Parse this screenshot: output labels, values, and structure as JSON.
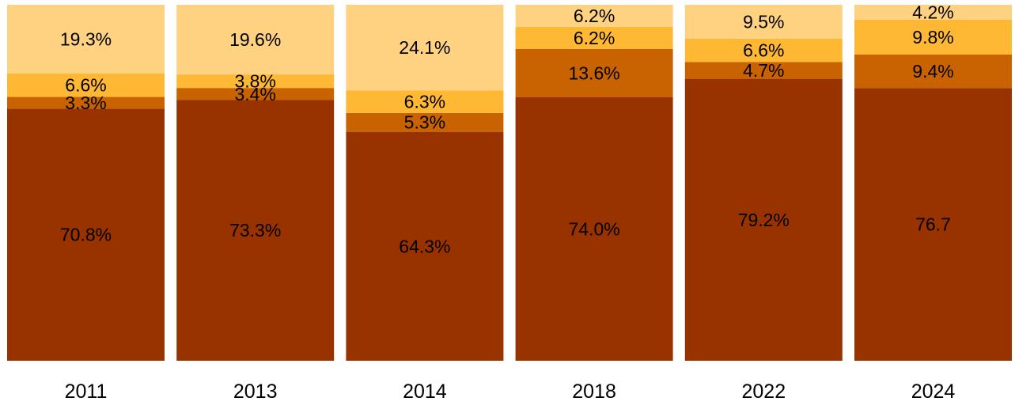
{
  "chart_data": {
    "type": "bar",
    "stacked": true,
    "normalized_to": 100,
    "categories": [
      "2011",
      "2013",
      "2014",
      "2018",
      "2022",
      "2024"
    ],
    "series": [
      {
        "values": [
          70.8,
          73.3,
          64.3,
          74.0,
          79.2,
          76.7
        ],
        "labels": [
          "70.8%",
          "73.3%",
          "64.3%",
          "74.0%",
          "79.2%",
          "76.7"
        ],
        "color": "#983300"
      },
      {
        "values": [
          3.3,
          3.4,
          5.3,
          13.6,
          4.7,
          9.4
        ],
        "labels": [
          "3.3%",
          "3.4%",
          "5.3%",
          "13.6%",
          "4.7%",
          "9.4%"
        ],
        "color": "#C96200"
      },
      {
        "values": [
          6.6,
          3.8,
          6.3,
          6.2,
          6.6,
          9.8
        ],
        "labels": [
          "6.6%",
          "3.8%",
          "6.3%",
          "6.2%",
          "6.6%",
          "9.8%"
        ],
        "color": "#FEB833"
      },
      {
        "values": [
          19.3,
          19.6,
          24.1,
          6.2,
          9.5,
          4.2
        ],
        "labels": [
          "19.3%",
          "19.6%",
          "24.1%",
          "6.2%",
          "9.5%",
          "4.2%"
        ],
        "color": "#FED280"
      }
    ],
    "grid": false,
    "legend": "none"
  }
}
